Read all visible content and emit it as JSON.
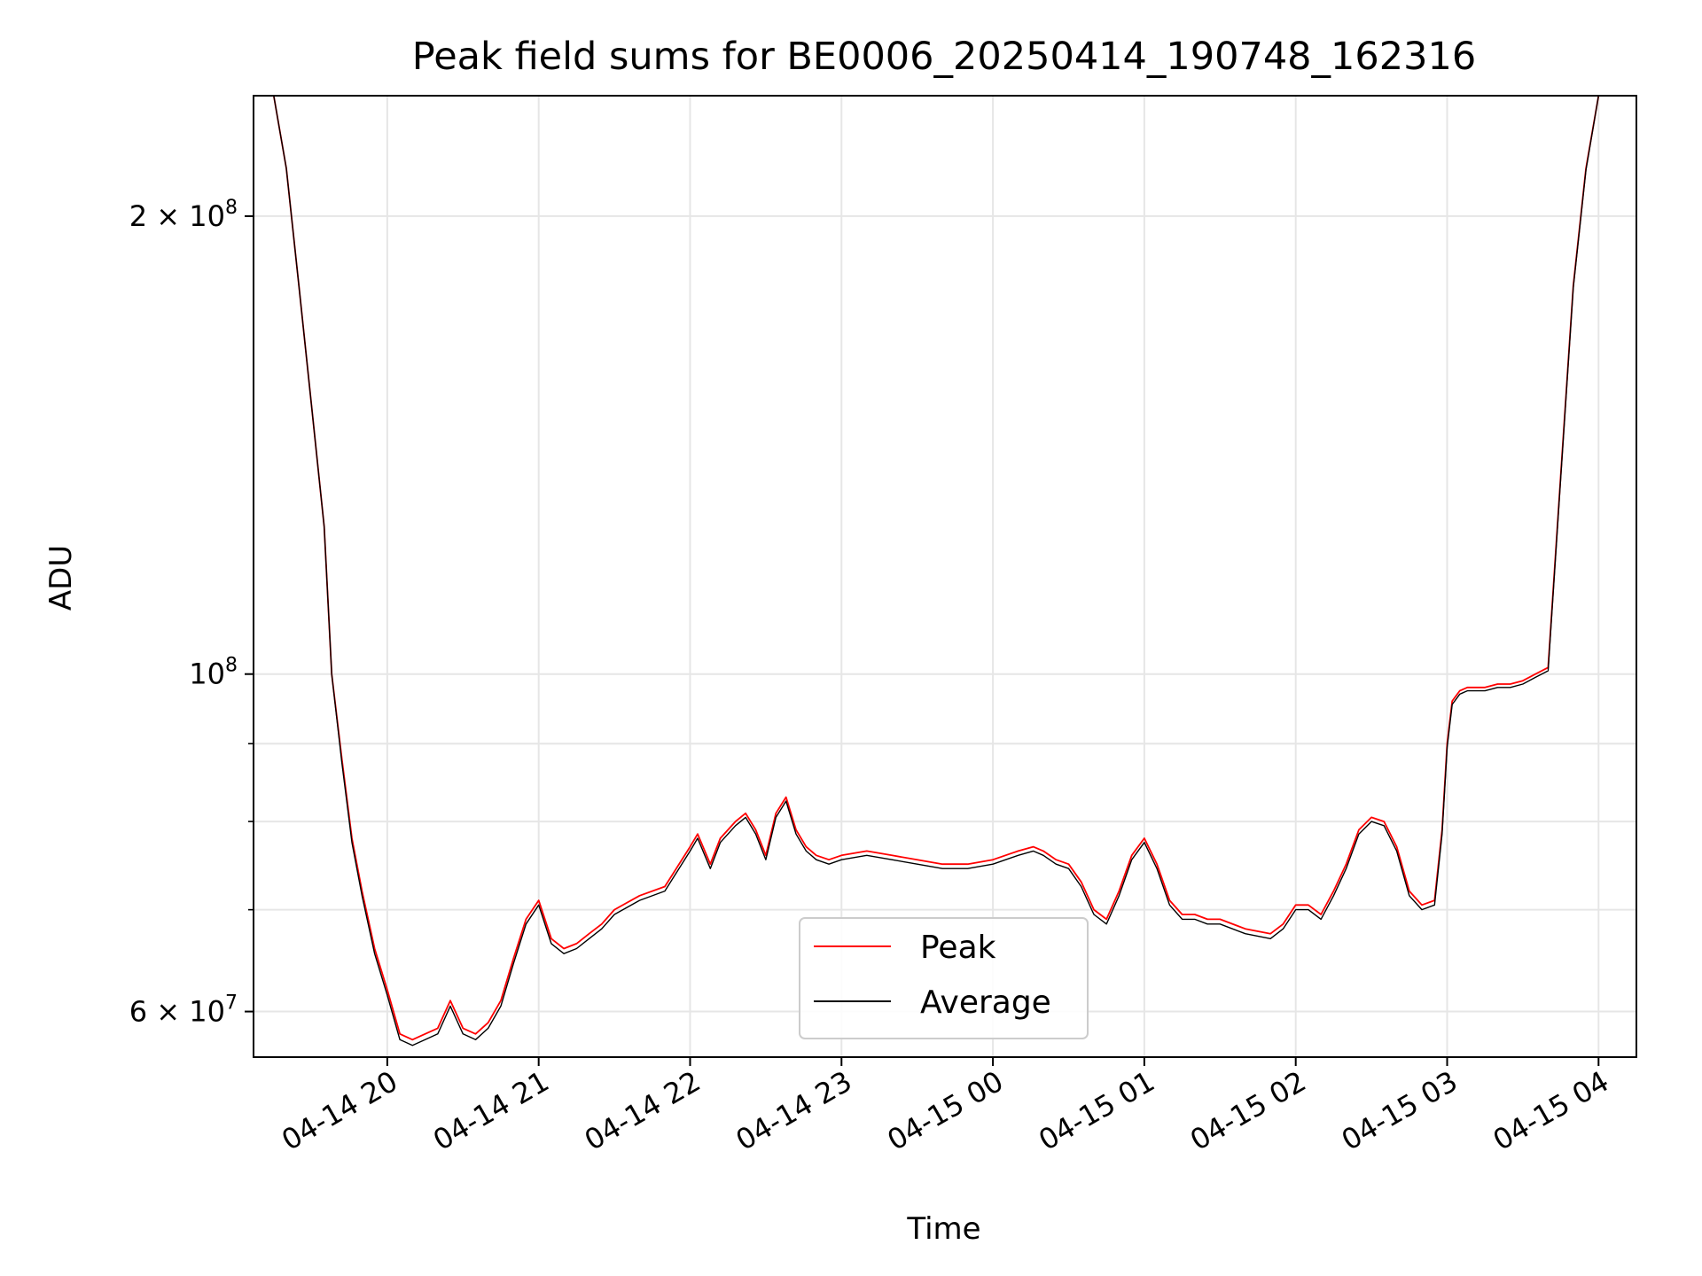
{
  "chart_data": {
    "type": "line",
    "title": "Peak field sums for BE0006_20250414_190748_162316",
    "xlabel": "Time",
    "ylabel": "ADU",
    "y_scale": "log",
    "xlim": [
      "2025-04-14 19:07",
      "2025-04-15 04:15"
    ],
    "ylim": [
      56000000,
      240000000
    ],
    "x_ticks": [
      "04-14 20",
      "04-14 21",
      "04-14 22",
      "04-14 23",
      "04-15 00",
      "04-15 01",
      "04-15 02",
      "04-15 03",
      "04-15 04"
    ],
    "y_ticks_major": [
      {
        "value": 60000000,
        "mantissa": "6",
        "exponent": "7"
      },
      {
        "value": 100000000,
        "mantissa": "",
        "exponent": "8"
      },
      {
        "value": 200000000,
        "mantissa": "2",
        "exponent": "8"
      }
    ],
    "y_ticks_minor": [
      70000000,
      80000000,
      90000000
    ],
    "grid": true,
    "legend_position": "lower-center",
    "series": [
      {
        "name": "Peak",
        "color": "#ff0000",
        "x": [
          "2025-04-14 19:07",
          "2025-04-14 19:15",
          "2025-04-14 19:20",
          "2025-04-14 19:25",
          "2025-04-14 19:30",
          "2025-04-14 19:35",
          "2025-04-14 19:38",
          "2025-04-14 19:42",
          "2025-04-14 19:46",
          "2025-04-14 19:50",
          "2025-04-14 19:55",
          "2025-04-14 20:00",
          "2025-04-14 20:05",
          "2025-04-14 20:10",
          "2025-04-14 20:15",
          "2025-04-14 20:20",
          "2025-04-14 20:25",
          "2025-04-14 20:30",
          "2025-04-14 20:35",
          "2025-04-14 20:40",
          "2025-04-14 20:45",
          "2025-04-14 20:50",
          "2025-04-14 20:55",
          "2025-04-14 21:00",
          "2025-04-14 21:05",
          "2025-04-14 21:10",
          "2025-04-14 21:15",
          "2025-04-14 21:20",
          "2025-04-14 21:25",
          "2025-04-14 21:30",
          "2025-04-14 21:40",
          "2025-04-14 21:50",
          "2025-04-14 22:00",
          "2025-04-14 22:03",
          "2025-04-14 22:08",
          "2025-04-14 22:12",
          "2025-04-14 22:15",
          "2025-04-14 22:18",
          "2025-04-14 22:22",
          "2025-04-14 22:26",
          "2025-04-14 22:30",
          "2025-04-14 22:34",
          "2025-04-14 22:38",
          "2025-04-14 22:42",
          "2025-04-14 22:46",
          "2025-04-14 22:50",
          "2025-04-14 22:55",
          "2025-04-14 23:00",
          "2025-04-14 23:10",
          "2025-04-14 23:20",
          "2025-04-14 23:30",
          "2025-04-14 23:40",
          "2025-04-14 23:50",
          "2025-04-15 00:00",
          "2025-04-15 00:10",
          "2025-04-15 00:16",
          "2025-04-15 00:20",
          "2025-04-15 00:25",
          "2025-04-15 00:30",
          "2025-04-15 00:35",
          "2025-04-15 00:40",
          "2025-04-15 00:45",
          "2025-04-15 00:50",
          "2025-04-15 00:55",
          "2025-04-15 01:00",
          "2025-04-15 01:05",
          "2025-04-15 01:10",
          "2025-04-15 01:15",
          "2025-04-15 01:20",
          "2025-04-15 01:25",
          "2025-04-15 01:30",
          "2025-04-15 01:40",
          "2025-04-15 01:50",
          "2025-04-15 01:55",
          "2025-04-15 02:00",
          "2025-04-15 02:05",
          "2025-04-15 02:10",
          "2025-04-15 02:15",
          "2025-04-15 02:20",
          "2025-04-15 02:25",
          "2025-04-15 02:30",
          "2025-04-15 02:35",
          "2025-04-15 02:40",
          "2025-04-15 02:45",
          "2025-04-15 02:50",
          "2025-04-15 02:55",
          "2025-04-15 02:58",
          "2025-04-15 03:00",
          "2025-04-15 03:02",
          "2025-04-15 03:05",
          "2025-04-15 03:08",
          "2025-04-15 03:15",
          "2025-04-15 03:20",
          "2025-04-15 03:25",
          "2025-04-15 03:30",
          "2025-04-15 03:35",
          "2025-04-15 03:40",
          "2025-04-15 03:45",
          "2025-04-15 03:50",
          "2025-04-15 03:55",
          "2025-04-15 04:00"
        ],
        "y": [
          240000000,
          240000000,
          215000000,
          180000000,
          150000000,
          125000000,
          100000000,
          88000000,
          78000000,
          72000000,
          66000000,
          62000000,
          58000000,
          57500000,
          58000000,
          58500000,
          61000000,
          58500000,
          58000000,
          59000000,
          61000000,
          65000000,
          69000000,
          71000000,
          67000000,
          66000000,
          66500000,
          67500000,
          68500000,
          70000000,
          71500000,
          72500000,
          77000000,
          78500000,
          75000000,
          78000000,
          79000000,
          80000000,
          81000000,
          79000000,
          76000000,
          81000000,
          83000000,
          79000000,
          77000000,
          76000000,
          75500000,
          76000000,
          76500000,
          76000000,
          75500000,
          75000000,
          75000000,
          75500000,
          76500000,
          77000000,
          76500000,
          75500000,
          75000000,
          73000000,
          70000000,
          69000000,
          72000000,
          76000000,
          78000000,
          75000000,
          71000000,
          69500000,
          69500000,
          69000000,
          69000000,
          68000000,
          67500000,
          68500000,
          70500000,
          70500000,
          69500000,
          72000000,
          75000000,
          79000000,
          80500000,
          80000000,
          77000000,
          72000000,
          70500000,
          71000000,
          79000000,
          90000000,
          96000000,
          97500000,
          98000000,
          98000000,
          98500000,
          98500000,
          99000000,
          100000000,
          101000000,
          135000000,
          180000000,
          215000000,
          240000000
        ]
      },
      {
        "name": "Average",
        "color": "#000000",
        "x": [
          "2025-04-14 19:07",
          "2025-04-14 19:15",
          "2025-04-14 19:20",
          "2025-04-14 19:25",
          "2025-04-14 19:30",
          "2025-04-14 19:35",
          "2025-04-14 19:38",
          "2025-04-14 19:42",
          "2025-04-14 19:46",
          "2025-04-14 19:50",
          "2025-04-14 19:55",
          "2025-04-14 20:00",
          "2025-04-14 20:05",
          "2025-04-14 20:10",
          "2025-04-14 20:15",
          "2025-04-14 20:20",
          "2025-04-14 20:25",
          "2025-04-14 20:30",
          "2025-04-14 20:35",
          "2025-04-14 20:40",
          "2025-04-14 20:45",
          "2025-04-14 20:50",
          "2025-04-14 20:55",
          "2025-04-14 21:00",
          "2025-04-14 21:05",
          "2025-04-14 21:10",
          "2025-04-14 21:15",
          "2025-04-14 21:20",
          "2025-04-14 21:25",
          "2025-04-14 21:30",
          "2025-04-14 21:40",
          "2025-04-14 21:50",
          "2025-04-14 22:00",
          "2025-04-14 22:03",
          "2025-04-14 22:08",
          "2025-04-14 22:12",
          "2025-04-14 22:15",
          "2025-04-14 22:18",
          "2025-04-14 22:22",
          "2025-04-14 22:26",
          "2025-04-14 22:30",
          "2025-04-14 22:34",
          "2025-04-14 22:38",
          "2025-04-14 22:42",
          "2025-04-14 22:46",
          "2025-04-14 22:50",
          "2025-04-14 22:55",
          "2025-04-14 23:00",
          "2025-04-14 23:10",
          "2025-04-14 23:20",
          "2025-04-14 23:30",
          "2025-04-14 23:40",
          "2025-04-14 23:50",
          "2025-04-15 00:00",
          "2025-04-15 00:10",
          "2025-04-15 00:16",
          "2025-04-15 00:20",
          "2025-04-15 00:25",
          "2025-04-15 00:30",
          "2025-04-15 00:35",
          "2025-04-15 00:40",
          "2025-04-15 00:45",
          "2025-04-15 00:50",
          "2025-04-15 00:55",
          "2025-04-15 01:00",
          "2025-04-15 01:05",
          "2025-04-15 01:10",
          "2025-04-15 01:15",
          "2025-04-15 01:20",
          "2025-04-15 01:25",
          "2025-04-15 01:30",
          "2025-04-15 01:40",
          "2025-04-15 01:50",
          "2025-04-15 01:55",
          "2025-04-15 02:00",
          "2025-04-15 02:05",
          "2025-04-15 02:10",
          "2025-04-15 02:15",
          "2025-04-15 02:20",
          "2025-04-15 02:25",
          "2025-04-15 02:30",
          "2025-04-15 02:35",
          "2025-04-15 02:40",
          "2025-04-15 02:45",
          "2025-04-15 02:50",
          "2025-04-15 02:55",
          "2025-04-15 02:58",
          "2025-04-15 03:00",
          "2025-04-15 03:02",
          "2025-04-15 03:05",
          "2025-04-15 03:08",
          "2025-04-15 03:15",
          "2025-04-15 03:20",
          "2025-04-15 03:25",
          "2025-04-15 03:30",
          "2025-04-15 03:35",
          "2025-04-15 03:40",
          "2025-04-15 03:45",
          "2025-04-15 03:50",
          "2025-04-15 03:55",
          "2025-04-15 04:00"
        ],
        "y": [
          240000000,
          240000000,
          215000000,
          180000000,
          150000000,
          125000000,
          100000000,
          87500000,
          77500000,
          71500000,
          65500000,
          61500000,
          57500000,
          57000000,
          57500000,
          58000000,
          60500000,
          58000000,
          57500000,
          58500000,
          60500000,
          64500000,
          68500000,
          70500000,
          66500000,
          65500000,
          66000000,
          67000000,
          68000000,
          69500000,
          71000000,
          72000000,
          76500000,
          78000000,
          74500000,
          77500000,
          78500000,
          79500000,
          80500000,
          78500000,
          75500000,
          80500000,
          82500000,
          78500000,
          76500000,
          75500000,
          75000000,
          75500000,
          76000000,
          75500000,
          75000000,
          74500000,
          74500000,
          75000000,
          76000000,
          76500000,
          76000000,
          75000000,
          74500000,
          72500000,
          69500000,
          68500000,
          71500000,
          75500000,
          77500000,
          74500000,
          70500000,
          69000000,
          69000000,
          68500000,
          68500000,
          67500000,
          67000000,
          68000000,
          70000000,
          70000000,
          69000000,
          71500000,
          74500000,
          78500000,
          80000000,
          79500000,
          76500000,
          71500000,
          70000000,
          70500000,
          78500000,
          89500000,
          95500000,
          97000000,
          97500000,
          97500000,
          98000000,
          98000000,
          98500000,
          99500000,
          100500000,
          134500000,
          179500000,
          214500000,
          240000000
        ]
      }
    ]
  }
}
